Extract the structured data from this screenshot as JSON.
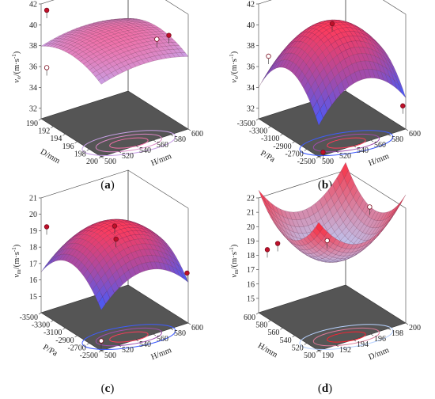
{
  "figure": {
    "panels": [
      "a",
      "b",
      "c",
      "d"
    ]
  },
  "chart_data": [
    {
      "type": "surface",
      "label": "(a)",
      "zlabel": "v0/(m·s⁻¹)",
      "zlabel_main": "v",
      "zlabel_sub": "o",
      "zlabel_unit": "/(m·s",
      "zlabel_sup": "-1",
      "zlabel_close": ")",
      "zticks": [
        "32",
        "34",
        "36",
        "38",
        "40",
        "42"
      ],
      "zlim": [
        31,
        42
      ],
      "left_axis": {
        "label": "D/mm",
        "range": [
          190,
          200
        ],
        "ticks": [
          "190",
          "192",
          "194",
          "196",
          "198",
          "200"
        ]
      },
      "right_axis": {
        "label": "H/mm",
        "range": [
          500,
          600
        ],
        "ticks": [
          "500",
          "520",
          "540",
          "560",
          "580",
          "600"
        ]
      },
      "surface": {
        "quad": [
          0,
          -0.06,
          -0.09,
          0.0
        ],
        "center": 39.6,
        "colors": [
          "#f06fa6",
          "#c8a0e6"
        ]
      },
      "points": [
        {
          "u": 0.05,
          "v": 0.03,
          "z": 41.5,
          "fill": "#c0102a"
        },
        {
          "u": 0.05,
          "v": 0.03,
          "z": 36.0,
          "fill": "#ffffff"
        },
        {
          "u": 0.75,
          "v": 0.95,
          "z": 39.2,
          "fill": "#c0102a"
        },
        {
          "u": 0.55,
          "v": 0.95,
          "z": 38.1,
          "fill": "#ffffff"
        }
      ]
    },
    {
      "type": "surface",
      "label": "(b)",
      "zlabel": "v0/(m·s⁻¹)",
      "zlabel_main": "v",
      "zlabel_sub": "o",
      "zlabel_unit": "/(m·s",
      "zlabel_sup": "-1",
      "zlabel_close": ")",
      "zticks": [
        "32",
        "34",
        "36",
        "38",
        "40",
        "42"
      ],
      "zlim": [
        31,
        42
      ],
      "left_axis": {
        "label": "P/Pa",
        "range": [
          -3500,
          -2500
        ],
        "ticks": [
          "-3500",
          "-3300",
          "-3100",
          "-2900",
          "-2700",
          "-2500"
        ]
      },
      "right_axis": {
        "label": "H/mm",
        "range": [
          500,
          600
        ],
        "ticks": [
          "500",
          "520",
          "540",
          "560",
          "580",
          "600"
        ]
      },
      "surface": {
        "quad": [
          0,
          -0.28,
          -0.32,
          0.0
        ],
        "center": 40.6,
        "colors": [
          "#ff3b5a",
          "#3f5cff"
        ]
      },
      "points": [
        {
          "u": 0.02,
          "v": 0.1,
          "z": 36.8,
          "fill": "#ffffff"
        },
        {
          "u": 0.5,
          "v": 0.5,
          "z": 40.6,
          "fill": "#c0102a"
        },
        {
          "u": 1.0,
          "v": 0.05,
          "z": 31.3,
          "fill": "#c0102a"
        },
        {
          "u": 0.98,
          "v": 0.98,
          "z": 33.2,
          "fill": "#c0102a"
        }
      ]
    },
    {
      "type": "surface",
      "label": "(c)",
      "zlabel": "vm/(m·s⁻¹)",
      "zlabel_main": "v",
      "zlabel_sub": "m",
      "zlabel_unit": "/(m·s",
      "zlabel_sup": "-1",
      "zlabel_close": ")",
      "zticks": [
        "15",
        "16",
        "17",
        "18",
        "19",
        "20",
        "21"
      ],
      "zlim": [
        14,
        21
      ],
      "left_axis": {
        "label": "P/Pa",
        "range": [
          -3500,
          -2500
        ],
        "ticks": [
          "-3500",
          "-3300",
          "-3100",
          "-2900",
          "-2700",
          "-2500"
        ]
      },
      "right_axis": {
        "label": "H/mm",
        "range": [
          500,
          600
        ],
        "ticks": [
          "500",
          "520",
          "540",
          "560",
          "580",
          "600"
        ]
      },
      "surface": {
        "quad": [
          0,
          -0.22,
          -0.24,
          0.0
        ],
        "center": 19.7,
        "colors": [
          "#ff3b5a",
          "#3f5cff"
        ]
      },
      "points": [
        {
          "u": 0.02,
          "v": 0.05,
          "z": 19.2,
          "fill": "#c0102a"
        },
        {
          "u": 0.5,
          "v": 0.5,
          "z": 19.6,
          "fill": "#c0102a"
        },
        {
          "u": 0.45,
          "v": 0.55,
          "z": 18.6,
          "fill": "#c0102a"
        },
        {
          "u": 1.0,
          "v": 0.0,
          "z": 14.6,
          "fill": "#ffffff"
        },
        {
          "u": 0.98,
          "v": 1.0,
          "z": 17.0,
          "fill": "#c0102a"
        }
      ]
    },
    {
      "type": "surface",
      "label": "(d)",
      "zlabel": "vm/(m·s⁻¹)",
      "zlabel_main": "v",
      "zlabel_sub": "m",
      "zlabel_unit": "/(m·s",
      "zlabel_sup": "-1",
      "zlabel_close": ")",
      "zticks": [
        "15",
        "16",
        "17",
        "18",
        "19",
        "20",
        "21",
        "22"
      ],
      "zlim": [
        14,
        22
      ],
      "left_axis": {
        "label": "H/mm",
        "range": [
          600,
          500
        ],
        "ticks": [
          "600",
          "580",
          "560",
          "540",
          "520",
          "500"
        ]
      },
      "right_axis": {
        "label": "D/mm",
        "range": [
          190,
          200
        ],
        "ticks": [
          "190",
          "192",
          "194",
          "196",
          "198",
          "200"
        ]
      },
      "surface": {
        "quad": [
          0.05,
          0.3,
          0.28,
          0.0
        ],
        "center": 18.1,
        "colors": [
          "#ff2030",
          "#b8d2ff"
        ]
      },
      "points": [
        {
          "u": 0.1,
          "v": 0.15,
          "z": 18.8,
          "fill": "#c0102a"
        },
        {
          "u": 0.0,
          "v": 0.1,
          "z": 18.2,
          "fill": "#c0102a"
        },
        {
          "u": 0.4,
          "v": 1.0,
          "z": 20.5,
          "fill": "#ffffff"
        },
        {
          "u": 0.2,
          "v": 0.65,
          "z": 18.3,
          "fill": "#ffffff"
        }
      ]
    }
  ]
}
